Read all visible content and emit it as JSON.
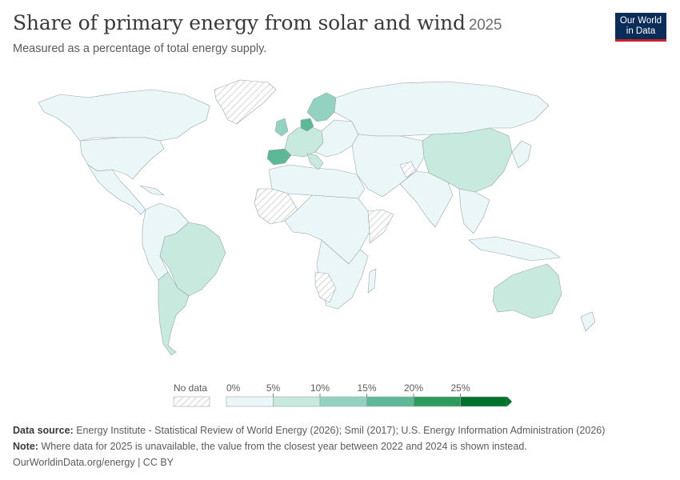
{
  "header": {
    "title": "Share of primary energy from solar and wind",
    "year": "2025",
    "subtitle": "Measured as a percentage of total energy supply."
  },
  "logo": {
    "line1": "Our World",
    "line2": "in Data"
  },
  "legend": {
    "no_data_label": "No data",
    "bins": [
      "0%",
      "5%",
      "10%",
      "15%",
      "20%",
      "25%"
    ],
    "colors": [
      "#eaf6f7",
      "#c7e9de",
      "#93d2c0",
      "#5cb897",
      "#2e9a5d",
      "#00712d"
    ]
  },
  "footer": {
    "source_label": "Data source:",
    "source_text": "Energy Institute - Statistical Review of World Energy (2026); Smil (2017); U.S. Energy Information Administration (2026)",
    "note_label": "Note:",
    "note_text": "Where data for 2025 is unavailable, the value from the closest year between 2022 and 2024 is shown instead.",
    "link_text": "OurWorldinData.org/energy | CC BY"
  },
  "colors": {
    "bin_0_5": "#eaf6f7",
    "bin_5_10": "#c7e9de",
    "bin_10_15": "#93d2c0",
    "bin_15_20": "#5cb897",
    "no_data_hatch": "#d9d9d9",
    "border": "#9aa6a8"
  }
}
